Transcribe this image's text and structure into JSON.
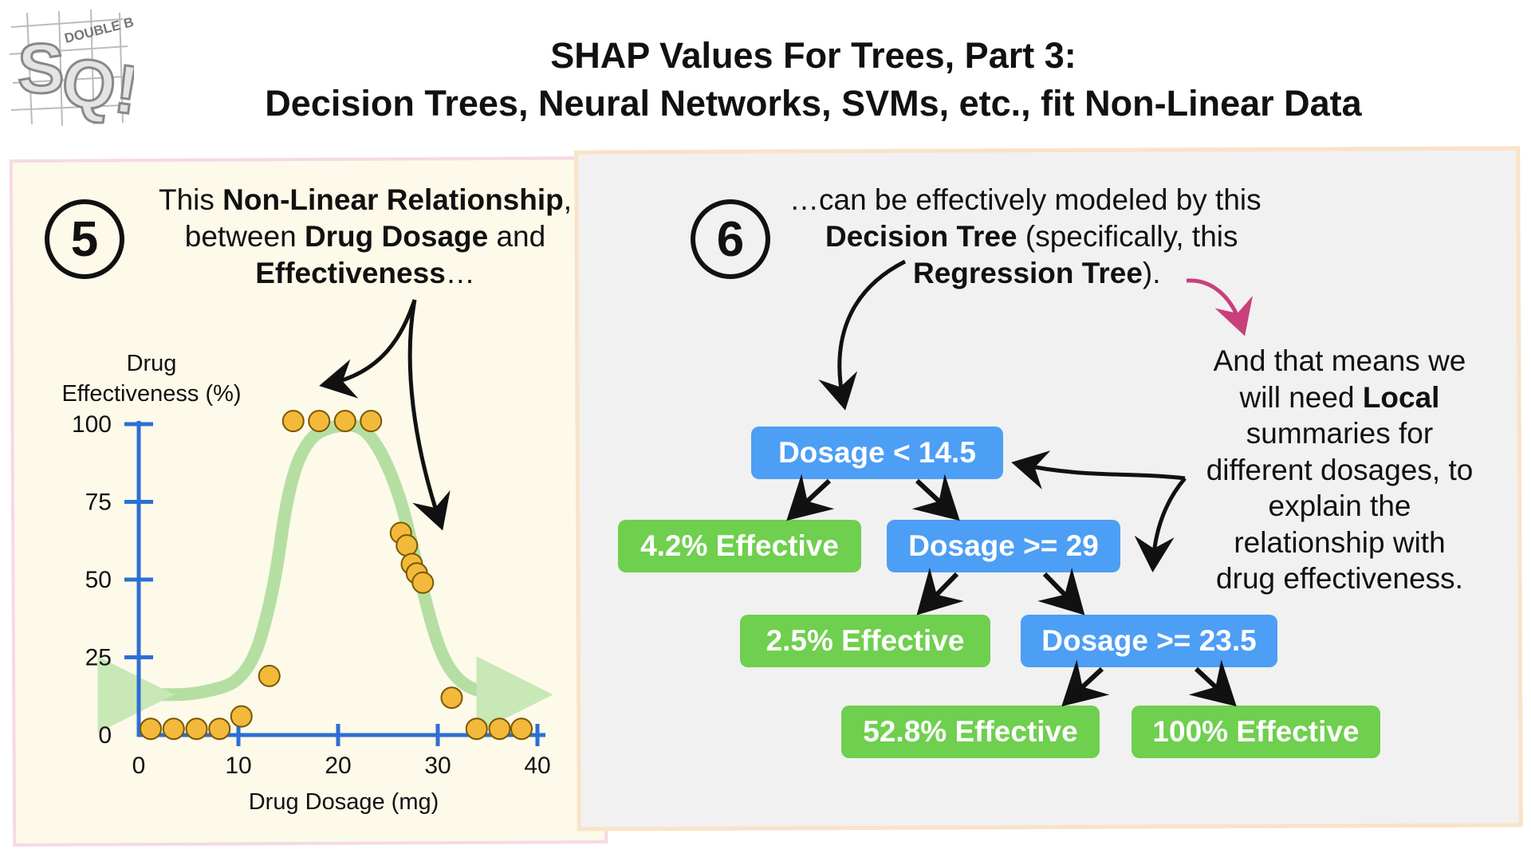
{
  "header": {
    "logo_text": "DOUBLE BAM!!! SQ!",
    "title_line1": "SHAP Values For Trees, Part 3:",
    "title_line2": "Decision Trees, Neural Networks, SVMs, etc., fit Non-Linear Data"
  },
  "step5": {
    "number": "5",
    "caption": {
      "l1_a": "This ",
      "l1_b": "Non-Linear Relationship",
      "l1_c": ",",
      "l2_a": "between ",
      "l2_b": "Drug Dosage",
      "l2_c": " and",
      "l3_a": "Effectiveness",
      "l3_b": "…"
    }
  },
  "step6": {
    "number": "6",
    "caption": {
      "l1": "…can be effectively modeled by this",
      "l2_a": "Decision Tree",
      "l2_b": " (specifically, this",
      "l3_a": "Regression Tree",
      "l3_b": ")."
    }
  },
  "local_note": {
    "l1": "And that means we",
    "l2_a": "will need ",
    "l2_b": "Local",
    "l3": "summaries for",
    "l4": "different dosages, to",
    "l5": "explain the",
    "l6": "relationship with",
    "l7": "drug effectiveness."
  },
  "tree": {
    "root": "Dosage < 14.5",
    "leaf1": "4.2% Effective",
    "node2": "Dosage >= 29",
    "leaf2": "2.5% Effective",
    "node3": "Dosage >= 23.5",
    "leaf3": "52.8% Effective",
    "leaf4": "100% Effective"
  },
  "colors": {
    "point_fill": "#f2b93b",
    "point_stroke": "#7a5800",
    "axis": "#2d6fd4",
    "trend": "#9ed68a",
    "node_blue": "#4d9ef5",
    "node_green": "#6fcf4e",
    "arrow_pink": "#c8407c"
  },
  "chart_data": {
    "type": "scatter",
    "xlabel": "Drug Dosage (mg)",
    "ylabel_line1": "Drug",
    "ylabel_line2": "Effectiveness (%)",
    "xlim": [
      0,
      40
    ],
    "ylim": [
      0,
      100
    ],
    "x_ticks": [
      0,
      10,
      20,
      30,
      40
    ],
    "y_ticks": [
      0,
      25,
      50,
      75,
      100
    ],
    "points": [
      {
        "x": 1.2,
        "y": 2
      },
      {
        "x": 3.5,
        "y": 2
      },
      {
        "x": 5.8,
        "y": 2
      },
      {
        "x": 8.1,
        "y": 2
      },
      {
        "x": 10.3,
        "y": 6
      },
      {
        "x": 13.1,
        "y": 19
      },
      {
        "x": 15.5,
        "y": 101
      },
      {
        "x": 18.1,
        "y": 101
      },
      {
        "x": 20.7,
        "y": 101
      },
      {
        "x": 23.3,
        "y": 101
      },
      {
        "x": 26.3,
        "y": 65
      },
      {
        "x": 26.9,
        "y": 61
      },
      {
        "x": 27.4,
        "y": 55
      },
      {
        "x": 27.9,
        "y": 52
      },
      {
        "x": 28.5,
        "y": 49
      },
      {
        "x": 31.4,
        "y": 12
      },
      {
        "x": 33.9,
        "y": 2
      },
      {
        "x": 36.2,
        "y": 2
      },
      {
        "x": 38.4,
        "y": 2
      }
    ],
    "trend": [
      {
        "x": 1,
        "y": 13
      },
      {
        "x": 6,
        "y": 13
      },
      {
        "x": 11,
        "y": 18
      },
      {
        "x": 13.5,
        "y": 45
      },
      {
        "x": 15,
        "y": 80
      },
      {
        "x": 17,
        "y": 96
      },
      {
        "x": 20,
        "y": 100
      },
      {
        "x": 23,
        "y": 99
      },
      {
        "x": 26,
        "y": 80
      },
      {
        "x": 28,
        "y": 53
      },
      {
        "x": 30,
        "y": 28
      },
      {
        "x": 32,
        "y": 17
      },
      {
        "x": 35,
        "y": 13
      },
      {
        "x": 39,
        "y": 13
      }
    ]
  }
}
